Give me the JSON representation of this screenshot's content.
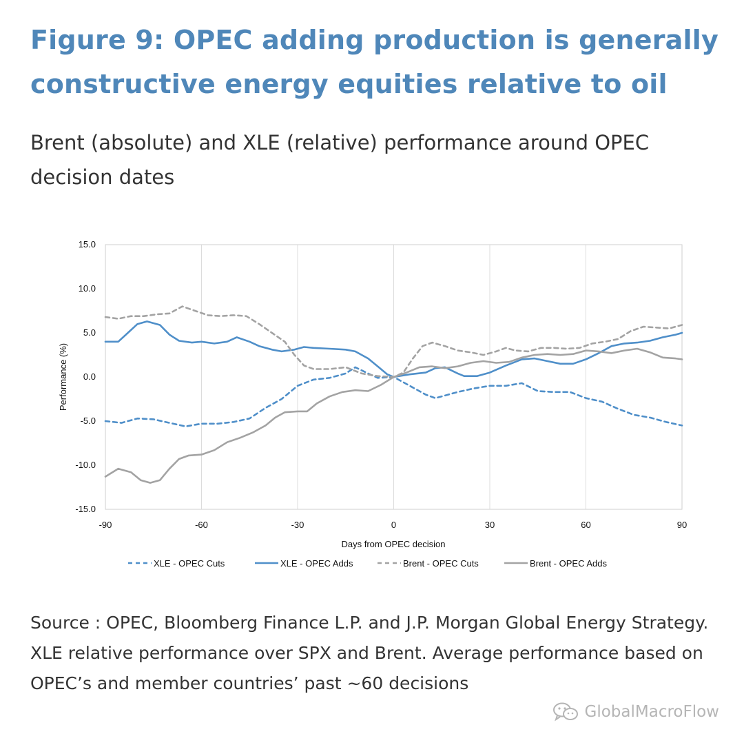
{
  "header": {
    "title": "Figure 9: OPEC adding production is generally constructive energy equities relative to oil",
    "subtitle": "Brent (absolute) and XLE (relative) performance around OPEC decision dates"
  },
  "footer": {
    "source": "Source : OPEC, Bloomberg Finance L.P. and J.P. Morgan Global Energy Strategy. XLE relative performance over SPX and Brent. Average performance based on OPEC’s and member countries’ past ~60 decisions",
    "watermark": "GlobalMacroFlow",
    "watermark_icon": "wechat-icon"
  },
  "chart_data": {
    "type": "line",
    "xlabel": "Days from OPEC decision",
    "ylabel": "Performance (%)",
    "xlim": [
      -90,
      90
    ],
    "ylim": [
      -15,
      15
    ],
    "x_ticks": [
      -90,
      -60,
      -30,
      0,
      30,
      60,
      90
    ],
    "y_ticks": [
      15.0,
      10.0,
      5.0,
      0.0,
      -5.0,
      -10.0,
      -15.0
    ],
    "y_tick_labels": [
      "15.0",
      "10.0",
      "5.0",
      "0.0",
      "-5.0",
      "-10.0",
      "-15.0"
    ],
    "grid": "vertical",
    "legend": "bottom",
    "series": [
      {
        "name": "XLE - OPEC Cuts",
        "color": "#4f8fc9",
        "dash": "dashed",
        "points": [
          [
            -90,
            -5.0
          ],
          [
            -85,
            -5.2
          ],
          [
            -80,
            -4.7
          ],
          [
            -75,
            -4.8
          ],
          [
            -70,
            -5.2
          ],
          [
            -65,
            -5.6
          ],
          [
            -60,
            -5.3
          ],
          [
            -55,
            -5.3
          ],
          [
            -50,
            -5.1
          ],
          [
            -45,
            -4.7
          ],
          [
            -40,
            -3.5
          ],
          [
            -35,
            -2.5
          ],
          [
            -30,
            -1.0
          ],
          [
            -25,
            -0.3
          ],
          [
            -20,
            -0.1
          ],
          [
            -15,
            0.4
          ],
          [
            -12,
            1.1
          ],
          [
            -8,
            0.4
          ],
          [
            -5,
            -0.1
          ],
          [
            0,
            0.0
          ],
          [
            5,
            -1.0
          ],
          [
            10,
            -2.0
          ],
          [
            13,
            -2.4
          ],
          [
            20,
            -1.7
          ],
          [
            25,
            -1.3
          ],
          [
            30,
            -1.0
          ],
          [
            35,
            -1.0
          ],
          [
            40,
            -0.7
          ],
          [
            45,
            -1.6
          ],
          [
            50,
            -1.7
          ],
          [
            55,
            -1.7
          ],
          [
            60,
            -2.4
          ],
          [
            65,
            -2.8
          ],
          [
            70,
            -3.6
          ],
          [
            75,
            -4.3
          ],
          [
            80,
            -4.6
          ],
          [
            85,
            -5.1
          ],
          [
            90,
            -5.5
          ]
        ]
      },
      {
        "name": "XLE - OPEC Adds",
        "color": "#4f8fc9",
        "dash": "solid",
        "points": [
          [
            -90,
            4.0
          ],
          [
            -86,
            4.0
          ],
          [
            -83,
            5.0
          ],
          [
            -80,
            6.0
          ],
          [
            -77,
            6.3
          ],
          [
            -73,
            5.9
          ],
          [
            -70,
            4.8
          ],
          [
            -67,
            4.1
          ],
          [
            -63,
            3.9
          ],
          [
            -60,
            4.0
          ],
          [
            -56,
            3.8
          ],
          [
            -52,
            4.0
          ],
          [
            -49,
            4.5
          ],
          [
            -45,
            4.0
          ],
          [
            -42,
            3.5
          ],
          [
            -38,
            3.1
          ],
          [
            -35,
            2.9
          ],
          [
            -31,
            3.1
          ],
          [
            -28,
            3.4
          ],
          [
            -25,
            3.3
          ],
          [
            -20,
            3.2
          ],
          [
            -15,
            3.1
          ],
          [
            -12,
            2.9
          ],
          [
            -8,
            2.1
          ],
          [
            -5,
            1.2
          ],
          [
            -2,
            0.3
          ],
          [
            0,
            0.0
          ],
          [
            5,
            0.3
          ],
          [
            10,
            0.5
          ],
          [
            13,
            1.0
          ],
          [
            16,
            1.1
          ],
          [
            20,
            0.4
          ],
          [
            22,
            0.1
          ],
          [
            26,
            0.1
          ],
          [
            30,
            0.5
          ],
          [
            35,
            1.3
          ],
          [
            40,
            2.0
          ],
          [
            44,
            2.1
          ],
          [
            48,
            1.8
          ],
          [
            52,
            1.5
          ],
          [
            56,
            1.5
          ],
          [
            60,
            2.0
          ],
          [
            64,
            2.7
          ],
          [
            68,
            3.5
          ],
          [
            72,
            3.8
          ],
          [
            76,
            3.9
          ],
          [
            80,
            4.1
          ],
          [
            84,
            4.5
          ],
          [
            88,
            4.8
          ],
          [
            90,
            5.0
          ]
        ]
      },
      {
        "name": "Brent - OPEC Cuts",
        "color": "#a3a3a3",
        "dash": "dashed",
        "points": [
          [
            -90,
            6.8
          ],
          [
            -86,
            6.6
          ],
          [
            -82,
            6.9
          ],
          [
            -78,
            6.9
          ],
          [
            -74,
            7.1
          ],
          [
            -70,
            7.2
          ],
          [
            -66,
            8.0
          ],
          [
            -62,
            7.5
          ],
          [
            -58,
            7.0
          ],
          [
            -54,
            6.9
          ],
          [
            -50,
            7.0
          ],
          [
            -46,
            6.9
          ],
          [
            -42,
            6.0
          ],
          [
            -38,
            5.0
          ],
          [
            -34,
            4.0
          ],
          [
            -31,
            2.5
          ],
          [
            -28,
            1.3
          ],
          [
            -25,
            0.9
          ],
          [
            -20,
            0.9
          ],
          [
            -15,
            1.1
          ],
          [
            -10,
            0.4
          ],
          [
            -5,
            0.1
          ],
          [
            0,
            0.0
          ],
          [
            3,
            0.5
          ],
          [
            6,
            2.1
          ],
          [
            9,
            3.5
          ],
          [
            12,
            3.9
          ],
          [
            16,
            3.5
          ],
          [
            20,
            3.0
          ],
          [
            24,
            2.8
          ],
          [
            28,
            2.5
          ],
          [
            32,
            2.9
          ],
          [
            35,
            3.3
          ],
          [
            38,
            3.0
          ],
          [
            42,
            2.9
          ],
          [
            46,
            3.3
          ],
          [
            50,
            3.3
          ],
          [
            54,
            3.2
          ],
          [
            58,
            3.3
          ],
          [
            62,
            3.8
          ],
          [
            66,
            4.0
          ],
          [
            70,
            4.3
          ],
          [
            74,
            5.2
          ],
          [
            78,
            5.7
          ],
          [
            82,
            5.6
          ],
          [
            86,
            5.5
          ],
          [
            90,
            5.9
          ]
        ]
      },
      {
        "name": "Brent - OPEC Adds",
        "color": "#a3a3a3",
        "dash": "solid",
        "points": [
          [
            -90,
            -11.3
          ],
          [
            -86,
            -10.4
          ],
          [
            -82,
            -10.8
          ],
          [
            -79,
            -11.7
          ],
          [
            -76,
            -12.0
          ],
          [
            -73,
            -11.7
          ],
          [
            -70,
            -10.4
          ],
          [
            -67,
            -9.3
          ],
          [
            -64,
            -8.9
          ],
          [
            -60,
            -8.8
          ],
          [
            -56,
            -8.3
          ],
          [
            -52,
            -7.4
          ],
          [
            -48,
            -6.9
          ],
          [
            -44,
            -6.3
          ],
          [
            -40,
            -5.5
          ],
          [
            -37,
            -4.6
          ],
          [
            -34,
            -4.0
          ],
          [
            -30,
            -3.9
          ],
          [
            -27,
            -3.9
          ],
          [
            -24,
            -3.0
          ],
          [
            -20,
            -2.2
          ],
          [
            -16,
            -1.7
          ],
          [
            -12,
            -1.5
          ],
          [
            -8,
            -1.6
          ],
          [
            -4,
            -0.9
          ],
          [
            0,
            0.0
          ],
          [
            4,
            0.5
          ],
          [
            8,
            1.1
          ],
          [
            12,
            1.2
          ],
          [
            16,
            1.0
          ],
          [
            20,
            1.2
          ],
          [
            24,
            1.6
          ],
          [
            28,
            1.8
          ],
          [
            32,
            1.6
          ],
          [
            36,
            1.7
          ],
          [
            40,
            2.2
          ],
          [
            44,
            2.5
          ],
          [
            48,
            2.6
          ],
          [
            52,
            2.5
          ],
          [
            56,
            2.6
          ],
          [
            60,
            3.0
          ],
          [
            64,
            2.9
          ],
          [
            68,
            2.7
          ],
          [
            72,
            3.0
          ],
          [
            76,
            3.2
          ],
          [
            80,
            2.8
          ],
          [
            84,
            2.2
          ],
          [
            88,
            2.1
          ],
          [
            90,
            2.0
          ]
        ]
      }
    ]
  }
}
